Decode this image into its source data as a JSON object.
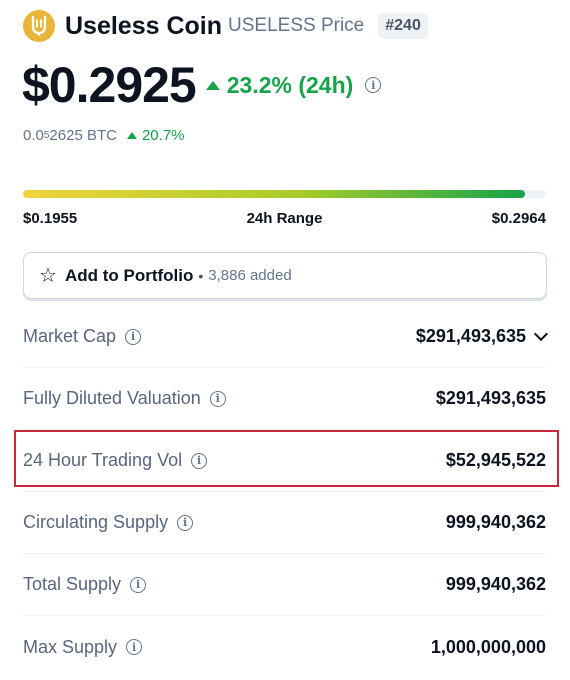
{
  "header": {
    "name": "Useless Coin",
    "symbol_price": "USELESS Price",
    "rank": "#240",
    "logo_color": "#e8b53a"
  },
  "price": {
    "value": "$0.2925",
    "change_24h": "23.2% (24h)",
    "change_color": "#16a34a"
  },
  "btc": {
    "prefix": "0.0",
    "sub": "5",
    "suffix": "2625 BTC",
    "change": "20.7%"
  },
  "range": {
    "low": "$0.1955",
    "label": "24h Range",
    "high": "$0.2964",
    "position_fraction": 0.96
  },
  "portfolio": {
    "label": "Add to Portfolio",
    "separator": "•",
    "count": "3,886 added"
  },
  "stats": [
    {
      "label": "Market Cap",
      "value": "$291,493,635"
    },
    {
      "label": "Fully Diluted Valuation",
      "value": "$291,493,635"
    },
    {
      "label": "24 Hour Trading Vol",
      "value": "$52,945,522"
    },
    {
      "label": "Circulating Supply",
      "value": "999,940,362"
    },
    {
      "label": "Total Supply",
      "value": "999,940,362"
    },
    {
      "label": "Max Supply",
      "value": "1,000,000,000"
    }
  ],
  "highlight_color": "#c8273c"
}
